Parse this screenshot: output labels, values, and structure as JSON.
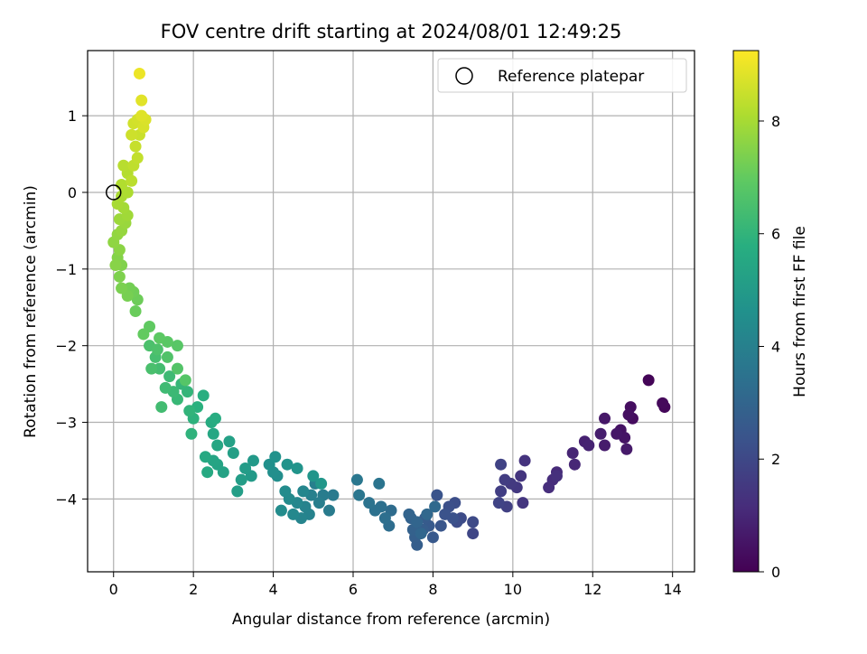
{
  "chart_data": {
    "type": "scatter",
    "title": "FOV centre drift starting at 2024/08/01 12:49:25",
    "xlabel": "Angular distance from reference (arcmin)",
    "ylabel": "Rotation from reference (arcmin)",
    "colorbar_label": "Hours from first FF file",
    "xlim": [
      -0.65,
      14.55
    ],
    "ylim": [
      -4.95,
      1.85
    ],
    "x_ticks": [
      0,
      2,
      4,
      6,
      8,
      10,
      12,
      14
    ],
    "y_ticks": [
      -4,
      -3,
      -2,
      -1,
      0,
      1
    ],
    "colorbar_range": [
      0,
      9.25
    ],
    "colorbar_ticks": [
      0,
      2,
      4,
      6,
      8
    ],
    "grid": true,
    "legend": {
      "position": "top-right",
      "entries": [
        {
          "label": "Reference platepar",
          "marker": "hollow-circle",
          "x": 0,
          "y": 0
        }
      ]
    },
    "colormap": "viridis",
    "points": [
      [
        13.4,
        -2.45,
        0.1
      ],
      [
        13.8,
        -2.8,
        0.15
      ],
      [
        13.75,
        -2.75,
        0.2
      ],
      [
        13.0,
        -2.95,
        0.3
      ],
      [
        12.95,
        -2.8,
        0.35
      ],
      [
        12.9,
        -2.9,
        0.4
      ],
      [
        12.7,
        -3.1,
        0.45
      ],
      [
        12.8,
        -3.2,
        0.5
      ],
      [
        12.6,
        -3.15,
        0.55
      ],
      [
        12.3,
        -2.95,
        0.6
      ],
      [
        12.85,
        -3.35,
        0.65
      ],
      [
        12.3,
        -3.3,
        0.7
      ],
      [
        12.2,
        -3.15,
        0.75
      ],
      [
        11.8,
        -3.25,
        0.85
      ],
      [
        11.9,
        -3.3,
        0.9
      ],
      [
        11.5,
        -3.4,
        0.95
      ],
      [
        11.55,
        -3.55,
        1.0
      ],
      [
        11.1,
        -3.65,
        1.1
      ],
      [
        11.0,
        -3.75,
        1.15
      ],
      [
        10.9,
        -3.85,
        1.2
      ],
      [
        11.1,
        -3.7,
        1.25
      ],
      [
        10.3,
        -3.5,
        1.35
      ],
      [
        10.2,
        -3.7,
        1.4
      ],
      [
        10.25,
        -4.05,
        1.45
      ],
      [
        10.1,
        -3.85,
        1.5
      ],
      [
        9.95,
        -3.8,
        1.55
      ],
      [
        9.8,
        -3.75,
        1.65
      ],
      [
        9.7,
        -3.9,
        1.7
      ],
      [
        9.85,
        -4.1,
        1.75
      ],
      [
        9.7,
        -3.55,
        1.8
      ],
      [
        9.65,
        -4.05,
        1.85
      ],
      [
        9.0,
        -4.45,
        1.95
      ],
      [
        9.0,
        -4.3,
        2.05
      ],
      [
        8.7,
        -4.25,
        2.1
      ],
      [
        8.6,
        -4.3,
        2.15
      ],
      [
        8.55,
        -4.05,
        2.2
      ],
      [
        8.4,
        -4.1,
        2.25
      ],
      [
        8.5,
        -4.25,
        2.3
      ],
      [
        8.3,
        -4.2,
        2.35
      ],
      [
        8.1,
        -3.95,
        2.4
      ],
      [
        8.2,
        -4.35,
        2.45
      ],
      [
        8.0,
        -4.5,
        2.55
      ],
      [
        7.9,
        -4.35,
        2.6
      ],
      [
        7.8,
        -4.25,
        2.65
      ],
      [
        7.75,
        -4.4,
        2.7
      ],
      [
        7.6,
        -4.6,
        2.75
      ],
      [
        7.55,
        -4.5,
        2.8
      ],
      [
        7.5,
        -4.4,
        2.85
      ],
      [
        7.45,
        -4.25,
        2.9
      ],
      [
        7.4,
        -4.2,
        2.95
      ],
      [
        7.6,
        -4.3,
        3.0
      ],
      [
        7.7,
        -4.45,
        3.05
      ],
      [
        7.85,
        -4.2,
        3.1
      ],
      [
        8.05,
        -4.1,
        3.15
      ],
      [
        6.95,
        -4.15,
        3.25
      ],
      [
        6.9,
        -4.35,
        3.3
      ],
      [
        6.8,
        -4.25,
        3.35
      ],
      [
        6.7,
        -4.1,
        3.4
      ],
      [
        6.55,
        -4.15,
        3.45
      ],
      [
        6.4,
        -4.05,
        3.5
      ],
      [
        6.65,
        -3.8,
        3.55
      ],
      [
        6.15,
        -3.95,
        3.6
      ],
      [
        6.1,
        -3.75,
        3.65
      ],
      [
        5.5,
        -3.95,
        3.75
      ],
      [
        5.4,
        -4.15,
        3.8
      ],
      [
        5.25,
        -3.95,
        3.85
      ],
      [
        5.15,
        -4.05,
        3.9
      ],
      [
        5.05,
        -3.8,
        3.95
      ],
      [
        4.95,
        -3.95,
        4.0
      ],
      [
        4.9,
        -4.2,
        4.05
      ],
      [
        4.8,
        -4.1,
        4.1
      ],
      [
        4.7,
        -4.25,
        4.15
      ],
      [
        4.75,
        -3.9,
        4.2
      ],
      [
        4.6,
        -4.05,
        4.25
      ],
      [
        4.5,
        -4.2,
        4.3
      ],
      [
        4.4,
        -4.0,
        4.35
      ],
      [
        4.3,
        -3.9,
        4.4
      ],
      [
        4.2,
        -4.15,
        4.45
      ],
      [
        4.1,
        -3.7,
        4.5
      ],
      [
        4.0,
        -3.65,
        4.55
      ],
      [
        3.9,
        -3.55,
        4.6
      ],
      [
        4.05,
        -3.45,
        4.65
      ],
      [
        4.35,
        -3.55,
        4.7
      ],
      [
        4.6,
        -3.6,
        4.75
      ],
      [
        5.0,
        -3.7,
        4.8
      ],
      [
        5.2,
        -3.8,
        4.85
      ],
      [
        3.5,
        -3.5,
        4.95
      ],
      [
        3.45,
        -3.7,
        5.0
      ],
      [
        3.3,
        -3.6,
        5.05
      ],
      [
        3.2,
        -3.75,
        5.1
      ],
      [
        3.1,
        -3.9,
        5.15
      ],
      [
        3.0,
        -3.4,
        5.2
      ],
      [
        2.9,
        -3.25,
        5.25
      ],
      [
        2.75,
        -3.65,
        5.3
      ],
      [
        2.6,
        -3.55,
        5.35
      ],
      [
        2.5,
        -3.5,
        5.4
      ],
      [
        2.6,
        -3.3,
        5.45
      ],
      [
        2.5,
        -3.15,
        5.5
      ],
      [
        2.3,
        -3.45,
        5.55
      ],
      [
        2.35,
        -3.65,
        5.6
      ],
      [
        2.45,
        -3.0,
        5.65
      ],
      [
        2.55,
        -2.95,
        5.7
      ],
      [
        2.25,
        -2.65,
        5.8
      ],
      [
        2.1,
        -2.8,
        5.85
      ],
      [
        2.0,
        -2.95,
        5.9
      ],
      [
        1.95,
        -3.15,
        5.95
      ],
      [
        1.9,
        -2.85,
        6.0
      ],
      [
        1.85,
        -2.6,
        6.05
      ],
      [
        1.7,
        -2.5,
        6.1
      ],
      [
        1.6,
        -2.7,
        6.15
      ],
      [
        1.5,
        -2.6,
        6.2
      ],
      [
        1.4,
        -2.4,
        6.25
      ],
      [
        1.3,
        -2.55,
        6.3
      ],
      [
        1.2,
        -2.8,
        6.35
      ],
      [
        1.15,
        -2.3,
        6.4
      ],
      [
        1.05,
        -2.15,
        6.45
      ],
      [
        0.95,
        -2.3,
        6.5
      ],
      [
        0.9,
        -2.0,
        6.55
      ],
      [
        1.1,
        -2.05,
        6.6
      ],
      [
        1.35,
        -2.15,
        6.65
      ],
      [
        1.6,
        -2.3,
        6.7
      ],
      [
        1.8,
        -2.45,
        6.75
      ],
      [
        1.6,
        -2.0,
        6.8
      ],
      [
        1.35,
        -1.95,
        6.85
      ],
      [
        1.15,
        -1.9,
        6.9
      ],
      [
        0.9,
        -1.75,
        6.95
      ],
      [
        0.75,
        -1.85,
        7.0
      ],
      [
        0.55,
        -1.55,
        7.1
      ],
      [
        0.6,
        -1.4,
        7.15
      ],
      [
        0.5,
        -1.3,
        7.2
      ],
      [
        0.4,
        -1.25,
        7.25
      ],
      [
        0.35,
        -1.35,
        7.3
      ],
      [
        0.2,
        -1.25,
        7.35
      ],
      [
        0.15,
        -1.1,
        7.4
      ],
      [
        0.2,
        -0.95,
        7.45
      ],
      [
        0.1,
        -0.85,
        7.5
      ],
      [
        0.05,
        -0.95,
        7.55
      ],
      [
        0.15,
        -0.75,
        7.6
      ],
      [
        0.0,
        -0.65,
        7.65
      ],
      [
        0.1,
        -0.55,
        7.7
      ],
      [
        0.2,
        -0.5,
        7.75
      ],
      [
        0.3,
        -0.4,
        7.8
      ],
      [
        0.15,
        -0.35,
        7.85
      ],
      [
        0.35,
        -0.3,
        7.9
      ],
      [
        0.25,
        -0.2,
        7.95
      ],
      [
        0.1,
        -0.15,
        8.0
      ],
      [
        0.2,
        -0.05,
        8.05
      ],
      [
        0.35,
        0.0,
        8.1
      ],
      [
        0.2,
        0.1,
        8.15
      ],
      [
        0.35,
        0.25,
        8.2
      ],
      [
        0.25,
        0.35,
        8.25
      ],
      [
        0.45,
        0.15,
        8.3
      ],
      [
        0.5,
        0.35,
        8.35
      ],
      [
        0.6,
        0.45,
        8.4
      ],
      [
        0.55,
        0.6,
        8.45
      ],
      [
        0.65,
        0.75,
        8.5
      ],
      [
        0.45,
        0.75,
        8.55
      ],
      [
        0.5,
        0.9,
        8.6
      ],
      [
        0.6,
        0.95,
        8.65
      ],
      [
        0.75,
        0.85,
        8.7
      ],
      [
        0.8,
        0.95,
        8.75
      ],
      [
        0.7,
        1.0,
        8.8
      ],
      [
        0.7,
        1.2,
        8.85
      ],
      [
        0.65,
        1.55,
        9.0
      ]
    ]
  }
}
